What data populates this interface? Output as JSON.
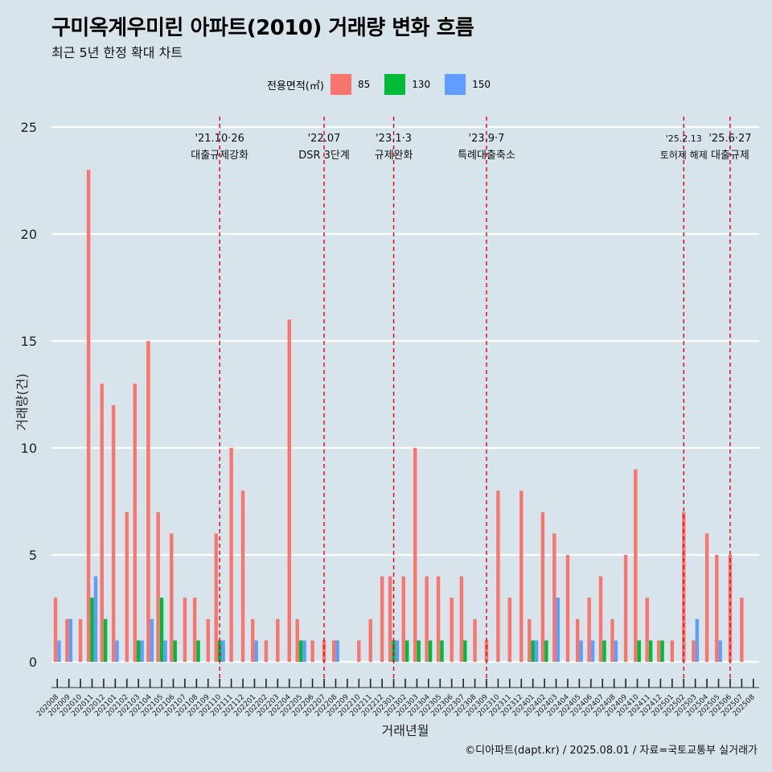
{
  "title": "구미옥계우미린 아파트(2010) 거래량 변화 흐름",
  "subtitle": "최근 5년 한정 확대 차트",
  "caption": "©디아파트(dapt.kr) / 2025.08.01 / 자료=국토교통부 실거래가",
  "legend": {
    "title": "전용면적(㎡)",
    "items": [
      {
        "label": "85",
        "color": "#f8766d"
      },
      {
        "label": "130",
        "color": "#00ba38"
      },
      {
        "label": "150",
        "color": "#619cff"
      }
    ]
  },
  "chart_data": {
    "type": "bar",
    "xlabel": "거래년월",
    "ylabel": "거래량(건)",
    "ylim": [
      0,
      25
    ],
    "yticks": [
      0,
      5,
      10,
      15,
      20,
      25
    ],
    "grid": "horizontal",
    "categories": [
      "202008",
      "202009",
      "202010",
      "202011",
      "202012",
      "202101",
      "202102",
      "202103",
      "202104",
      "202105",
      "202106",
      "202107",
      "202108",
      "202109",
      "202110",
      "202111",
      "202112",
      "202201",
      "202202",
      "202203",
      "202204",
      "202205",
      "202206",
      "202207",
      "202208",
      "202209",
      "202210",
      "202211",
      "202212",
      "202301",
      "202302",
      "202303",
      "202304",
      "202305",
      "202306",
      "202307",
      "202308",
      "202309",
      "202310",
      "202311",
      "202312",
      "202401",
      "202402",
      "202403",
      "202404",
      "202405",
      "202406",
      "202407",
      "202408",
      "202409",
      "202410",
      "202411",
      "202412",
      "202501",
      "202502",
      "202503",
      "202504",
      "202505",
      "202506",
      "202507",
      "202508"
    ],
    "series": [
      {
        "name": "85",
        "color": "#f8766d",
        "values": [
          3,
          2,
          2,
          23,
          13,
          12,
          7,
          13,
          15,
          7,
          6,
          3,
          3,
          2,
          6,
          10,
          8,
          2,
          1,
          2,
          16,
          2,
          1,
          1,
          1,
          0,
          1,
          2,
          4,
          4,
          4,
          10,
          4,
          4,
          3,
          4,
          2,
          1,
          8,
          3,
          8,
          2,
          7,
          6,
          5,
          2,
          3,
          4,
          2,
          5,
          9,
          3,
          1,
          1,
          7,
          1,
          6,
          5,
          5,
          3,
          0
        ]
      },
      {
        "name": "130",
        "color": "#00ba38",
        "values": [
          0,
          0,
          0,
          3,
          2,
          0,
          0,
          1,
          0,
          3,
          1,
          0,
          1,
          0,
          1,
          0,
          0,
          0,
          0,
          0,
          0,
          1,
          0,
          0,
          0,
          0,
          0,
          0,
          0,
          1,
          1,
          1,
          1,
          1,
          0,
          1,
          0,
          0,
          0,
          0,
          0,
          1,
          1,
          0,
          0,
          0,
          0,
          1,
          0,
          0,
          1,
          1,
          1,
          0,
          0,
          0,
          0,
          0,
          0,
          0,
          0
        ]
      },
      {
        "name": "150",
        "color": "#619cff",
        "values": [
          1,
          2,
          0,
          4,
          0,
          1,
          0,
          1,
          2,
          1,
          0,
          0,
          0,
          0,
          1,
          0,
          0,
          1,
          0,
          0,
          0,
          1,
          0,
          0,
          1,
          0,
          0,
          0,
          0,
          1,
          0,
          0,
          0,
          0,
          0,
          0,
          0,
          0,
          0,
          0,
          0,
          1,
          0,
          3,
          0,
          1,
          1,
          0,
          1,
          0,
          0,
          0,
          0,
          0,
          0,
          2,
          0,
          1,
          0,
          0,
          0
        ]
      }
    ],
    "annotations": [
      {
        "date": "202110",
        "line1": "'21.10·26",
        "line2": "대출규제강화"
      },
      {
        "date": "202207",
        "line1": "'22.07",
        "line2": "DSR 3단계"
      },
      {
        "date": "202301",
        "line1": "'23.1·3",
        "line2": "규제완화"
      },
      {
        "date": "202309",
        "line1": "'23.9·7",
        "line2": "특례대출축소"
      },
      {
        "date": "202502",
        "line1": "'25.2.13",
        "line2": "토허제 해제"
      },
      {
        "date": "202506",
        "line1": "'25.6·27",
        "line2": "대출규제"
      }
    ]
  }
}
